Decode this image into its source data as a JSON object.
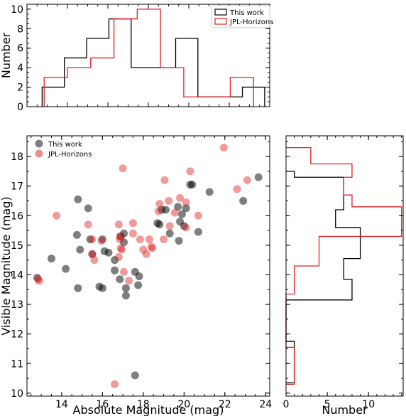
{
  "colors": {
    "this_work": "#000000",
    "jpl": "#e02020"
  },
  "chart_data": [
    {
      "id": "top_hist",
      "type": "histogram",
      "xlim": [
        12,
        24
      ],
      "ylim": [
        0,
        10.5
      ],
      "ylabel": "Number",
      "yticks": [
        0,
        2,
        4,
        6,
        8,
        10
      ],
      "legend": {
        "placement": "top-right",
        "entries": [
          "This work",
          "JPL-Horizons"
        ]
      },
      "series": [
        {
          "name": "This work",
          "color": "#000000",
          "edges": [
            12.75,
            13.85,
            14.95,
            16.05,
            17.15,
            18.25,
            19.35,
            20.45,
            21.55,
            22.65,
            23.75
          ],
          "counts": [
            2,
            5,
            7,
            9,
            4,
            4,
            7,
            1,
            1,
            2
          ]
        },
        {
          "name": "JPL-Horizons",
          "color": "#e02020",
          "edges": [
            12.85,
            14.0,
            15.15,
            16.3,
            17.45,
            18.6,
            19.75,
            20.9,
            22.05,
            23.2
          ],
          "counts": [
            3,
            4,
            5,
            9,
            10,
            4,
            1,
            1,
            3
          ]
        }
      ]
    },
    {
      "id": "scatter",
      "type": "scatter",
      "xlabel": "Absolute Magnitude (mag)",
      "ylabel": "Visible Magnitude (mag)",
      "xlim": [
        12.3,
        24.2
      ],
      "ylim": [
        9.9,
        18.7
      ],
      "xticks": [
        14,
        16,
        18,
        20,
        22,
        24
      ],
      "yticks": [
        10,
        11,
        12,
        13,
        14,
        15,
        16,
        17,
        18
      ],
      "legend": {
        "placement": "top-left",
        "entries": [
          "This work",
          "JPL-Horizons"
        ]
      },
      "series": [
        {
          "name": "This work",
          "color": "#000000",
          "points": [
            [
              12.8,
              13.9
            ],
            [
              13.5,
              14.55
            ],
            [
              14.2,
              14.2
            ],
            [
              14.8,
              16.55
            ],
            [
              14.75,
              15.35
            ],
            [
              14.9,
              14.85
            ],
            [
              14.8,
              13.55
            ],
            [
              15.3,
              16.25
            ],
            [
              15.4,
              15.2
            ],
            [
              15.5,
              14.7
            ],
            [
              15.85,
              13.6
            ],
            [
              16.0,
              13.55
            ],
            [
              16.0,
              15.2
            ],
            [
              16.1,
              14.8
            ],
            [
              16.3,
              14.75
            ],
            [
              16.6,
              14.5
            ],
            [
              16.6,
              14.15
            ],
            [
              16.85,
              13.85
            ],
            [
              16.9,
              15.3
            ],
            [
              17.05,
              15.4
            ],
            [
              17.05,
              15.1
            ],
            [
              17.15,
              13.55
            ],
            [
              17.15,
              13.3
            ],
            [
              17.6,
              10.6
            ],
            [
              17.6,
              14.1
            ],
            [
              17.8,
              13.95
            ],
            [
              17.75,
              13.65
            ],
            [
              18.7,
              15.75
            ],
            [
              18.8,
              15.7
            ],
            [
              18.9,
              16.2
            ],
            [
              19.1,
              16.2
            ],
            [
              19.3,
              15.4
            ],
            [
              19.7,
              16.3
            ],
            [
              19.75,
              15.15
            ],
            [
              19.8,
              15.8
            ],
            [
              19.9,
              16.05
            ],
            [
              20.0,
              15.65
            ],
            [
              20.1,
              16.25
            ],
            [
              20.3,
              17.05
            ],
            [
              20.4,
              17.05
            ],
            [
              20.7,
              15.45
            ],
            [
              21.25,
              16.8
            ],
            [
              22.9,
              16.5
            ],
            [
              23.65,
              17.3
            ]
          ]
        },
        {
          "name": "JPL-Horizons",
          "color": "#e02020",
          "points": [
            [
              12.85,
              13.85
            ],
            [
              12.9,
              13.8
            ],
            [
              13.75,
              16.0
            ],
            [
              15.3,
              15.7
            ],
            [
              15.5,
              15.2
            ],
            [
              15.6,
              14.5
            ],
            [
              15.5,
              14.7
            ],
            [
              15.95,
              15.15
            ],
            [
              16.6,
              10.3
            ],
            [
              16.8,
              15.7
            ],
            [
              16.85,
              15.3
            ],
            [
              16.85,
              15.2
            ],
            [
              16.9,
              14.9
            ],
            [
              16.95,
              14.85
            ],
            [
              16.8,
              14.6
            ],
            [
              17.0,
              17.6
            ],
            [
              17.05,
              14.1
            ],
            [
              17.3,
              13.8
            ],
            [
              17.5,
              15.75
            ],
            [
              17.5,
              15.4
            ],
            [
              17.85,
              15.2
            ],
            [
              18.0,
              14.85
            ],
            [
              18.15,
              14.7
            ],
            [
              18.3,
              15.2
            ],
            [
              18.4,
              14.95
            ],
            [
              18.45,
              14.9
            ],
            [
              18.75,
              16.15
            ],
            [
              18.8,
              16.4
            ],
            [
              19.0,
              15.2
            ],
            [
              19.05,
              17.2
            ],
            [
              19.25,
              16.5
            ],
            [
              19.3,
              15.65
            ],
            [
              19.55,
              16.1
            ],
            [
              19.8,
              16.6
            ],
            [
              20.1,
              16.45
            ],
            [
              20.3,
              17.5
            ],
            [
              20.1,
              15.6
            ],
            [
              20.7,
              16.0
            ],
            [
              21.95,
              18.3
            ],
            [
              22.6,
              16.9
            ],
            [
              23.1,
              17.2
            ]
          ]
        }
      ]
    },
    {
      "id": "right_hist",
      "type": "histogram",
      "orientation": "horizontal",
      "xlabel": "Number",
      "xlim": [
        0,
        14.2
      ],
      "ylim": [
        9.9,
        18.7
      ],
      "xticks": [
        0,
        5,
        10
      ],
      "series": [
        {
          "name": "This work",
          "color": "#000000",
          "edges": [
            10.35,
            10.7,
            11.05,
            11.4,
            11.75,
            12.1,
            12.45,
            12.8,
            13.15,
            13.5,
            13.85,
            14.2,
            14.55,
            14.8,
            15.6,
            16.2,
            17.3,
            17.5
          ],
          "counts": [
            1,
            1,
            1,
            1,
            0,
            0,
            0,
            0,
            8,
            8,
            7,
            7,
            9,
            9,
            6,
            7,
            1
          ]
        },
        {
          "name": "JPL-Horizons",
          "color": "#e02020",
          "edges": [
            10.3,
            10.75,
            11.2,
            11.55,
            13.35,
            14.3,
            15.3,
            16.3,
            16.7,
            17.3,
            17.75,
            18.3
          ],
          "counts": [
            1,
            1,
            1,
            0,
            1,
            4,
            14,
            8,
            7,
            8,
            3
          ]
        }
      ]
    }
  ]
}
